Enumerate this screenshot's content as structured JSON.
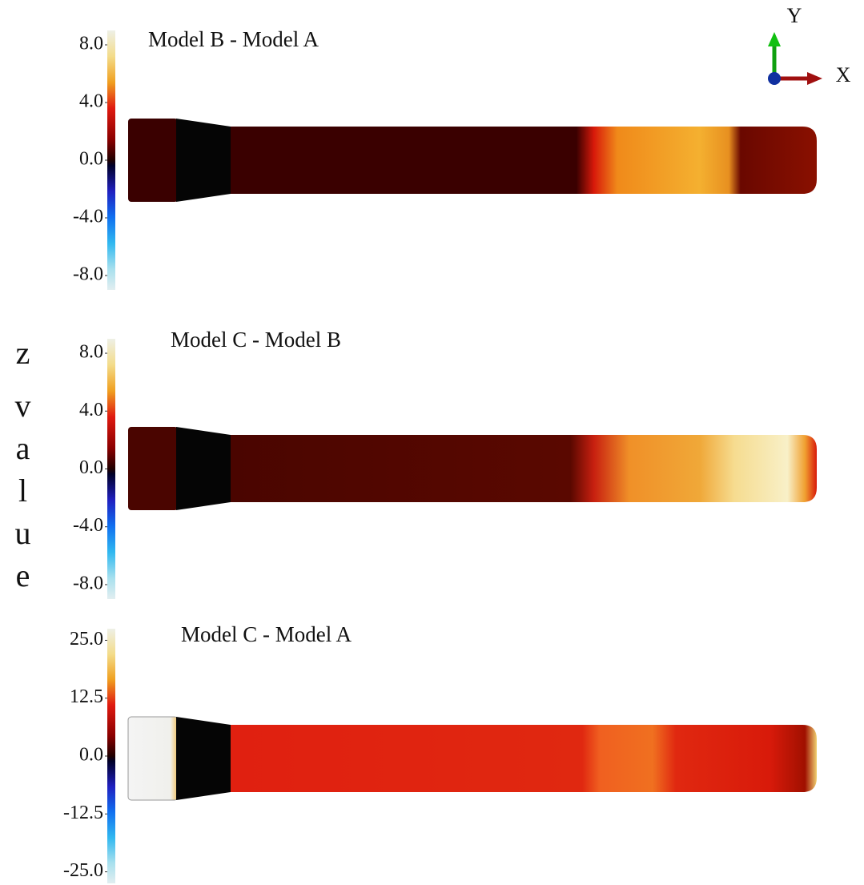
{
  "y_axis_label": "z value",
  "axes": {
    "x": "X",
    "y": "Y"
  },
  "panels": [
    {
      "title": "Model B - Model A",
      "colorbar": {
        "lim": [
          -9,
          9
        ],
        "ticks": [
          {
            "value": 8,
            "label": "8.0"
          },
          {
            "value": 4,
            "label": "4.0"
          },
          {
            "value": 0,
            "label": "0.0"
          },
          {
            "value": -4,
            "label": "-4.0"
          },
          {
            "value": -8,
            "label": "-8.0"
          }
        ]
      }
    },
    {
      "title": "Model C - Model B",
      "colorbar": {
        "lim": [
          -9,
          9
        ],
        "ticks": [
          {
            "value": 8,
            "label": "8.0"
          },
          {
            "value": 4,
            "label": "4.0"
          },
          {
            "value": 0,
            "label": "0.0"
          },
          {
            "value": -4,
            "label": "-4.0"
          },
          {
            "value": -8,
            "label": "-8.0"
          }
        ]
      }
    },
    {
      "title": "Model C - Model A",
      "colorbar": {
        "lim": [
          -27.5,
          27.5
        ],
        "ticks": [
          {
            "value": 25,
            "label": "25.0"
          },
          {
            "value": 12.5,
            "label": "12.5"
          },
          {
            "value": 0,
            "label": "0.0"
          },
          {
            "value": -12.5,
            "label": "-12.5"
          },
          {
            "value": -25,
            "label": "-25.0"
          }
        ]
      }
    }
  ]
}
